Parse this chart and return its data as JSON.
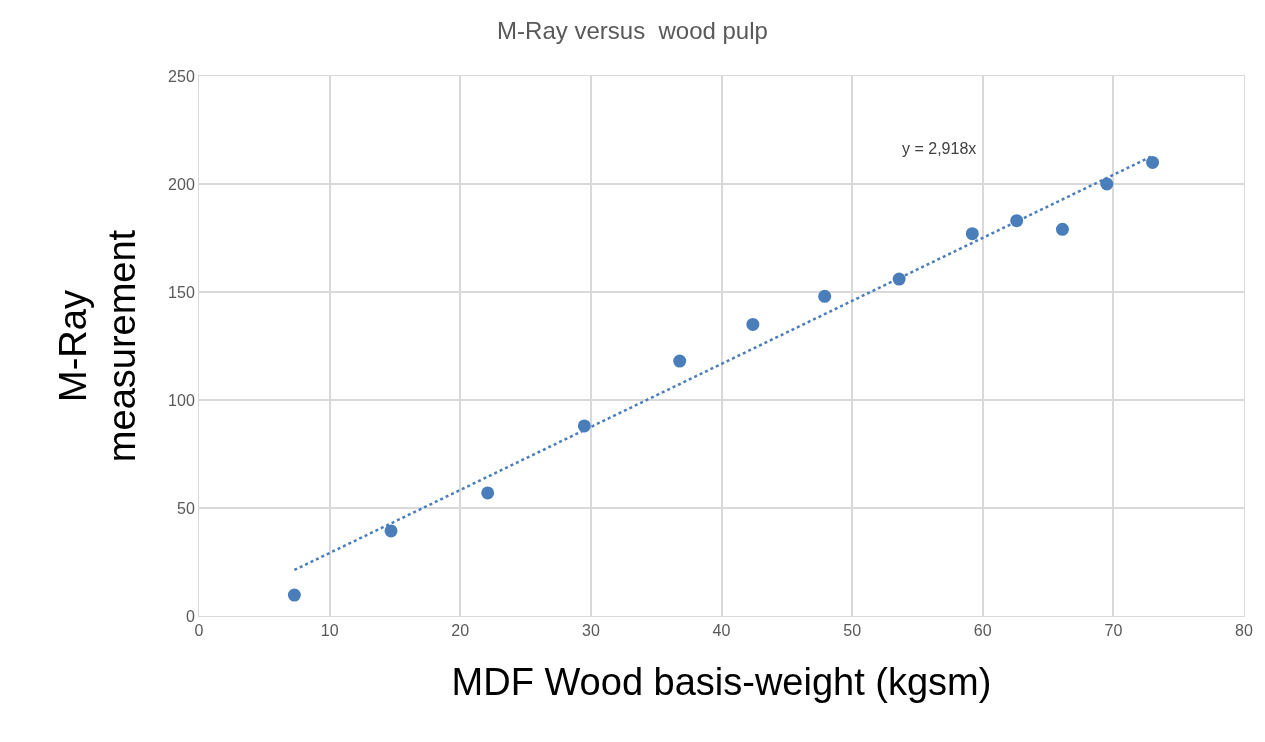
{
  "chart_data": {
    "type": "scatter",
    "title": "M-Ray versus  wood pulp",
    "xlabel": "MDF Wood basis-weight (kgsm)",
    "ylabel": "M-Ray\nmeasurement",
    "series": [
      {
        "color": "#4a7ebb",
        "marker": "circle",
        "x": [
          7.3,
          14.7,
          22.1,
          29.5,
          36.8,
          42.4,
          47.9,
          53.6,
          59.2,
          62.6,
          66.1,
          69.5,
          73.0
        ],
        "values": [
          9.7,
          39.4,
          57,
          88,
          118,
          135,
          148,
          156,
          177,
          183,
          179,
          200,
          210
        ]
      },
      {
        "type": "line",
        "color": "#4a7ebb",
        "marker": "none",
        "line_style": "dotted",
        "x": [
          7.3,
          73.0
        ],
        "values": [
          21.3,
          213.0
        ]
      }
    ],
    "annotations": [
      "y = 2,918x"
    ],
    "xlim": [
      0,
      80
    ],
    "xticks": [
      0,
      10,
      20,
      30,
      40,
      50,
      60,
      70,
      80
    ],
    "ylim": [
      0,
      250
    ],
    "yticks": [
      0,
      50,
      100,
      150,
      200,
      250
    ],
    "grid": true
  }
}
